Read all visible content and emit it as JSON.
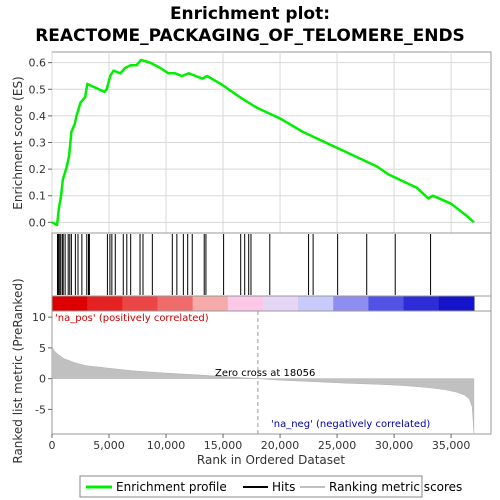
{
  "chart_data": {
    "type": "line",
    "title_line1": "Enrichment plot:",
    "title_line2": "REACTOME_PACKAGING_OF_TELOMERE_ENDS",
    "es_panel": {
      "ylabel": "Enrichment score (ES)",
      "ylim": [
        -0.04,
        0.64
      ],
      "yticks": [
        0.0,
        0.1,
        0.2,
        0.3,
        0.4,
        0.5,
        0.6
      ],
      "ytick_labels": [
        "0.0",
        "0.1",
        "0.2",
        "0.3",
        "0.4",
        "0.5",
        "0.6"
      ],
      "series": [
        {
          "name": "Enrichment profile",
          "color": "#00ee00",
          "x": [
            0,
            450,
            600,
            800,
            950,
            1300,
            1500,
            1700,
            2000,
            2150,
            2500,
            2900,
            3100,
            3600,
            4600,
            4800,
            5100,
            5400,
            6000,
            6400,
            6900,
            7400,
            7800,
            8600,
            9500,
            10200,
            10800,
            11400,
            12000,
            12600,
            13200,
            13600,
            14800,
            16500,
            18000,
            20000,
            22000,
            23000,
            24500,
            25500,
            27000,
            28500,
            29500,
            30500,
            32000,
            33000,
            33400,
            35000,
            36500,
            37000
          ],
          "y": [
            0.0,
            -0.01,
            0.05,
            0.1,
            0.16,
            0.21,
            0.25,
            0.34,
            0.37,
            0.4,
            0.45,
            0.47,
            0.52,
            0.51,
            0.49,
            0.5,
            0.55,
            0.57,
            0.56,
            0.58,
            0.59,
            0.59,
            0.61,
            0.6,
            0.58,
            0.56,
            0.56,
            0.55,
            0.56,
            0.55,
            0.54,
            0.55,
            0.52,
            0.47,
            0.43,
            0.39,
            0.34,
            0.32,
            0.29,
            0.27,
            0.24,
            0.21,
            0.18,
            0.16,
            0.13,
            0.09,
            0.1,
            0.07,
            0.02,
            0.0
          ]
        }
      ]
    },
    "hits": [
      480,
      560,
      640,
      760,
      900,
      980,
      1150,
      1420,
      1560,
      1700,
      2050,
      2280,
      2620,
      3050,
      3200,
      3280,
      4860,
      5080,
      5250,
      5550,
      6250,
      6560,
      6900,
      7720,
      7980,
      8800,
      10550,
      10950,
      11520,
      11900,
      12300,
      13350,
      13500,
      15050,
      16550,
      16900,
      17250,
      17450,
      19100,
      22500,
      22900,
      25050,
      27600,
      30100,
      33200
    ],
    "rank_panel": {
      "ylabel": "Ranked list metric (PreRanked)",
      "ylim": [
        -9,
        11
      ],
      "yticks": [
        10,
        5,
        0,
        -5
      ],
      "ytick_labels": [
        "10",
        "5",
        "0",
        "-5"
      ],
      "metric_x": [
        0,
        200,
        500,
        1000,
        2000,
        3000,
        5000,
        7000,
        10000,
        13000,
        15000,
        18056,
        20000,
        23000,
        26000,
        29000,
        31000,
        33000,
        34500,
        35500,
        36200,
        36600,
        36850,
        37000
      ],
      "metric_y": [
        5.2,
        4.5,
        4.0,
        3.3,
        2.6,
        2.1,
        1.7,
        1.3,
        0.9,
        0.6,
        0.35,
        0.0,
        -0.25,
        -0.5,
        -0.75,
        -0.95,
        -1.15,
        -1.45,
        -1.8,
        -2.2,
        -2.7,
        -3.3,
        -4.6,
        -8.8
      ],
      "pos_label": "'na_pos' (positively correlated)",
      "neg_label": "'na_neg' (negatively correlated)",
      "zero_cross_label": "Zero cross at 18056",
      "zero_cross": 18056
    },
    "x_axis": {
      "xlabel": "Rank in Ordered Dataset",
      "xlim": [
        0,
        38500
      ],
      "xticks": [
        0,
        5000,
        10000,
        15000,
        20000,
        25000,
        30000,
        35000
      ],
      "xtick_labels": [
        "0",
        "5,000",
        "10,000",
        "15,000",
        "20,000",
        "25,000",
        "30,000",
        "35,000"
      ]
    },
    "dataset_size": 37000,
    "colorbar": [
      "#dd0000",
      "#e42222",
      "#ea4646",
      "#f06c6c",
      "#f7aaaa",
      "#fbc8e8",
      "#e6d6f6",
      "#c9c9fb",
      "#8e8ef0",
      "#5252e6",
      "#2d2dd8",
      "#1414c8"
    ],
    "legend": {
      "entries": [
        "Enrichment profile",
        "Hits",
        "Ranking metric scores"
      ],
      "colors": [
        "#00ee00",
        "#000000",
        "#c0c0c0"
      ]
    }
  }
}
